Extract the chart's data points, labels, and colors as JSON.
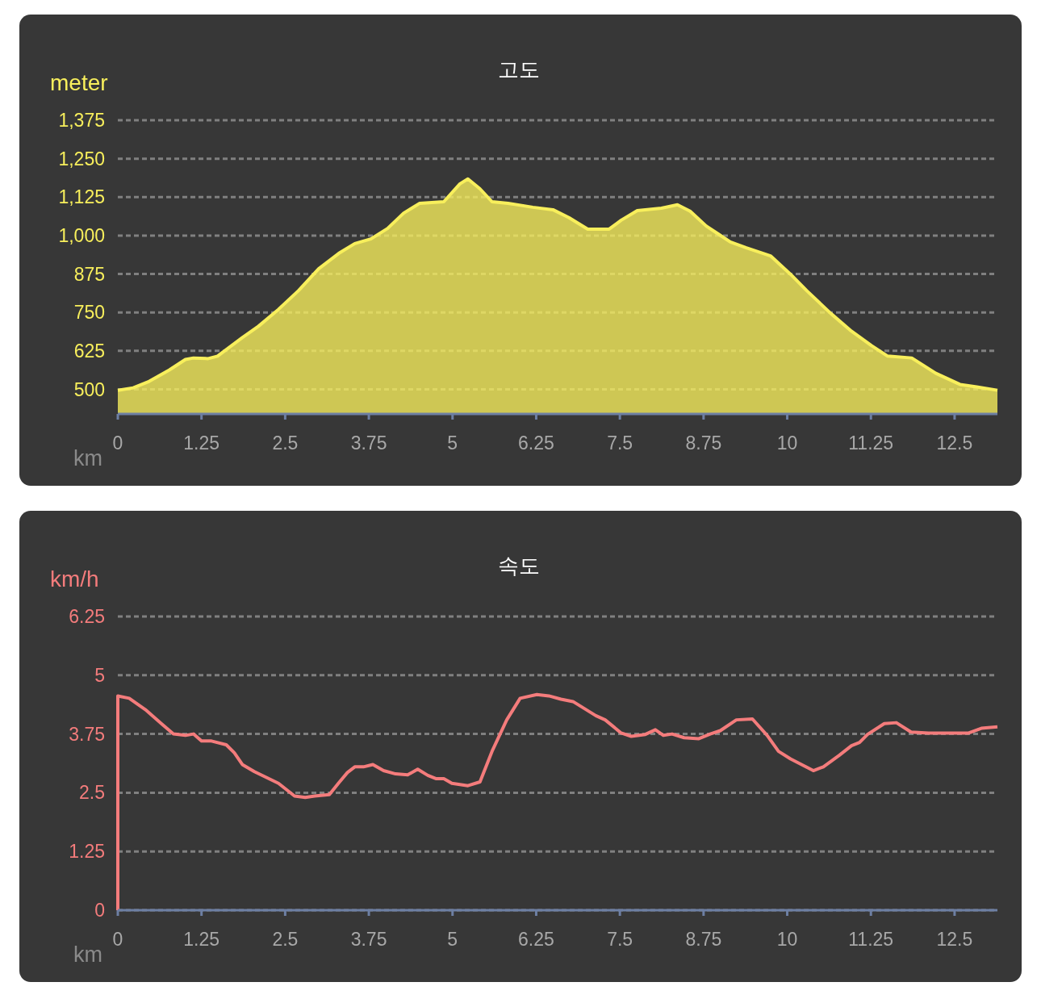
{
  "chart_data": [
    {
      "type": "area",
      "title": "고도",
      "ylabel": "meter",
      "xlabel": "km",
      "grid": "y",
      "xlim": [
        0,
        13.14
      ],
      "ylim": [
        420,
        1375
      ],
      "xticks": [
        0,
        1.25,
        2.5,
        3.75,
        5,
        6.25,
        7.5,
        8.75,
        10,
        11.25,
        12.5
      ],
      "yticks": [
        500,
        625,
        750,
        875,
        {
          "value": 1000,
          "label": "1,000"
        },
        {
          "value": 1125,
          "label": "1,125"
        },
        {
          "value": 1250,
          "label": "1,250"
        },
        {
          "value": 1375,
          "label": "1,375"
        }
      ],
      "series": [
        {
          "color": "#f8ef5c",
          "x": [
            0,
            0.23,
            0.47,
            0.77,
            1.01,
            1.13,
            1.35,
            1.49,
            1.86,
            2.1,
            2.4,
            2.7,
            3.0,
            3.3,
            3.54,
            3.78,
            4.03,
            4.27,
            4.51,
            4.87,
            5.11,
            5.23,
            5.41,
            5.59,
            5.83,
            6.2,
            6.5,
            6.74,
            7.02,
            7.34,
            7.52,
            7.76,
            8.12,
            8.36,
            8.55,
            8.79,
            8.97,
            9.15,
            9.39,
            9.75,
            10.05,
            10.29,
            10.65,
            10.96,
            11.26,
            11.5,
            11.86,
            12.22,
            12.58,
            12.83,
            13.14
          ],
          "values": [
            497,
            505,
            526,
            563,
            597,
            602,
            600,
            608,
            668,
            705,
            760,
            821,
            892,
            942,
            974,
            989,
            1023,
            1073,
            1105,
            1110,
            1168,
            1184,
            1152,
            1110,
            1105,
            1092,
            1084,
            1058,
            1021,
            1021,
            1050,
            1081,
            1089,
            1100,
            1079,
            1031,
            1005,
            979,
            960,
            934,
            874,
            821,
            747,
            689,
            642,
            608,
            602,
            552,
            516,
            508,
            497
          ]
        }
      ]
    },
    {
      "type": "line",
      "title": "속도",
      "ylabel": "km/h",
      "xlabel": "km",
      "grid": "y",
      "xlim": [
        0,
        13.14
      ],
      "ylim": [
        0,
        6.25
      ],
      "xticks": [
        0,
        1.25,
        2.5,
        3.75,
        5,
        6.25,
        7.5,
        8.75,
        10,
        11.25,
        12.5
      ],
      "yticks": [
        0,
        1.25,
        2.5,
        3.75,
        5,
        6.25
      ],
      "series": [
        {
          "color": "#f47c7c",
          "x": [
            0,
            0,
            0.17,
            0.41,
            0.65,
            0.83,
            1.01,
            1.13,
            1.25,
            1.4,
            1.62,
            1.74,
            1.86,
            2.04,
            2.4,
            2.64,
            2.8,
            2.94,
            3.16,
            3.3,
            3.43,
            3.54,
            3.67,
            3.81,
            3.97,
            4.15,
            4.33,
            4.48,
            4.63,
            4.75,
            4.87,
            4.99,
            5.23,
            5.41,
            5.59,
            5.81,
            6.01,
            6.26,
            6.44,
            6.62,
            6.8,
            7.14,
            7.28,
            7.52,
            7.67,
            7.88,
            8.03,
            8.15,
            8.28,
            8.46,
            8.68,
            8.85,
            9.0,
            9.24,
            9.48,
            9.7,
            9.87,
            10.05,
            10.39,
            10.54,
            10.78,
            10.96,
            11.08,
            11.2,
            11.45,
            11.63,
            11.85,
            12.11,
            12.71,
            12.9,
            13.14
          ],
          "values": [
            0,
            4.56,
            4.51,
            4.27,
            3.97,
            3.75,
            3.72,
            3.75,
            3.6,
            3.6,
            3.52,
            3.35,
            3.1,
            2.95,
            2.7,
            2.43,
            2.4,
            2.43,
            2.46,
            2.71,
            2.93,
            3.05,
            3.05,
            3.1,
            2.97,
            2.9,
            2.88,
            3.0,
            2.87,
            2.8,
            2.8,
            2.7,
            2.65,
            2.73,
            3.38,
            4.05,
            4.51,
            4.59,
            4.56,
            4.49,
            4.44,
            4.14,
            4.05,
            3.77,
            3.7,
            3.74,
            3.84,
            3.72,
            3.75,
            3.67,
            3.65,
            3.75,
            3.82,
            4.05,
            4.07,
            3.72,
            3.38,
            3.22,
            2.97,
            3.05,
            3.3,
            3.5,
            3.57,
            3.74,
            3.97,
            3.99,
            3.79,
            3.77,
            3.77,
            3.87,
            3.9
          ]
        }
      ]
    }
  ]
}
